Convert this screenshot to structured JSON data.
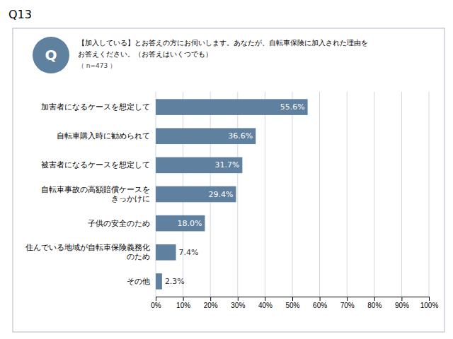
{
  "chart_data": {
    "type": "bar",
    "orientation": "horizontal",
    "title": "Q13",
    "annotations": [
      "Q",
      "【加入している】とお答えの方にお伺いします。あなたが、自転車保険に加入された理由を",
      "お答えください。（お答えはいくつでも）",
      "（ n=473 ）"
    ],
    "categories": [
      "加害者になるケースを想定して",
      "自転車購入時に勧められて",
      "被害者になるケースを想定して",
      "自転車事故の高額賠償ケースを\nきっかけに",
      "子供の安全のため",
      "住んでいる地域が自転車保険義務化\nのため",
      "その他"
    ],
    "values": [
      55.6,
      36.6,
      31.7,
      29.4,
      18.0,
      7.4,
      2.3
    ],
    "value_labels": [
      "55.6%",
      "36.6%",
      "31.7%",
      "29.4%",
      "18.0%",
      "7.4%",
      "2.3%"
    ],
    "data_labels": true,
    "color": "#6080a0",
    "xlim": [
      0,
      100
    ],
    "xticks": [
      {
        "value": 0,
        "label": "0%"
      },
      {
        "value": 10,
        "label": "10%"
      },
      {
        "value": 20,
        "label": "20%"
      },
      {
        "value": 30,
        "label": "30%"
      },
      {
        "value": 40,
        "label": "40%"
      },
      {
        "value": 50,
        "label": "50%"
      },
      {
        "value": 60,
        "label": "60%"
      },
      {
        "value": 70,
        "label": "70%"
      },
      {
        "value": 80,
        "label": "80%"
      },
      {
        "value": 90,
        "label": "90%"
      },
      {
        "value": 100,
        "label": "100%"
      }
    ],
    "grid": true
  }
}
